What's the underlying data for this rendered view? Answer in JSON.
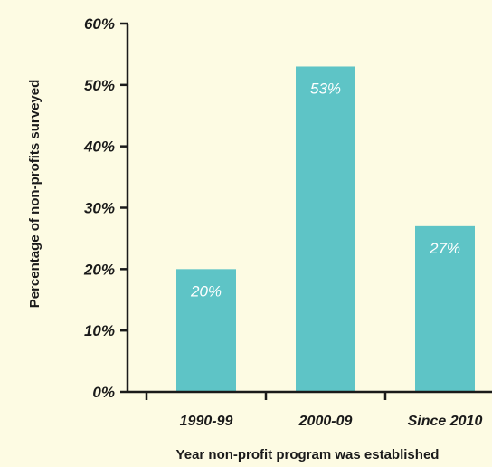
{
  "chart_data": {
    "type": "bar",
    "categories": [
      "1990-99",
      "2000-09",
      "Since 2010"
    ],
    "values": [
      20,
      53,
      27
    ],
    "value_labels": [
      "20%",
      "53%",
      "27%"
    ],
    "xlabel": "Year non-profit program was established",
    "ylabel": "Percentage of non-profits surveyed",
    "ylim": [
      0,
      60
    ],
    "yticks": [
      0,
      10,
      20,
      30,
      40,
      50,
      60
    ],
    "ytick_labels": [
      "0%",
      "10%",
      "20%",
      "30%",
      "40%",
      "50%",
      "60%"
    ],
    "bar_color": "#5ec4c6",
    "grid": false,
    "legend": "none"
  }
}
